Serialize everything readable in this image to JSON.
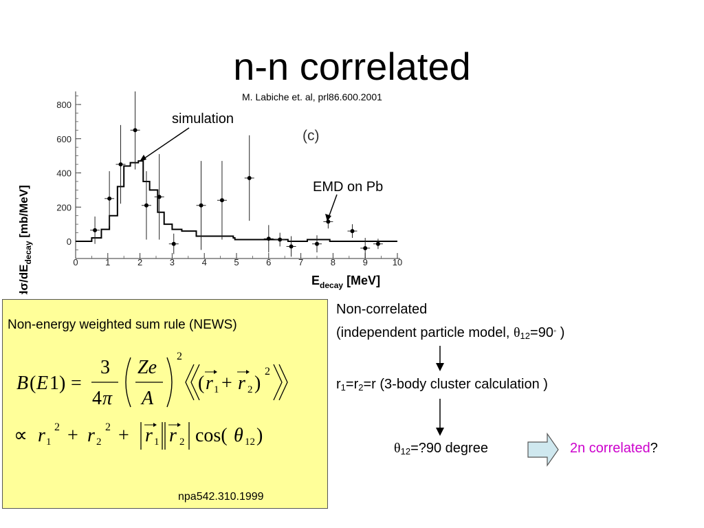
{
  "slide": {
    "title": "n-n correlated",
    "citation": "M. Labiche et. al, prl86.600.2001"
  },
  "plot": {
    "panel_label": "(c)",
    "annotation_simulation": "simulation",
    "annotation_emd": "EMD on Pb",
    "xlabel_main": "E",
    "xlabel_sub": "decay",
    "xlabel_unit": "[MeV]",
    "ylabel_prefix": "dσ/dE",
    "ylabel_sub": "decay",
    "ylabel_unit": "[mb/MeV]"
  },
  "chart_data": {
    "type": "scatter",
    "xlim": [
      0,
      10
    ],
    "ylim": [
      -100,
      900
    ],
    "xticks": [
      "0",
      "1",
      "2",
      "3",
      "4",
      "5",
      "6",
      "7",
      "8",
      "9",
      "10"
    ],
    "yticks": [
      "0",
      "200",
      "400",
      "600",
      "800"
    ],
    "series": [
      {
        "kind": "points_with_errors",
        "x": [
          0.6,
          1.05,
          1.4,
          1.85,
          2.2,
          2.6,
          3.05,
          3.9,
          4.55,
          5.4,
          6.0,
          6.35,
          6.7,
          7.5,
          7.85,
          8.6,
          9.0,
          9.4
        ],
        "y": [
          65,
          250,
          450,
          650,
          210,
          260,
          -15,
          210,
          240,
          370,
          15,
          10,
          -30,
          -15,
          115,
          60,
          -40,
          -15
        ],
        "yerr": [
          80,
          160,
          230,
          230,
          200,
          250,
          60,
          260,
          230,
          250,
          80,
          40,
          60,
          50,
          40,
          40,
          60,
          30
        ]
      },
      {
        "kind": "step",
        "edges": [
          0,
          0.5,
          0.8,
          1.05,
          1.3,
          1.5,
          1.7,
          1.95,
          2.1,
          2.3,
          2.55,
          2.75,
          3.0,
          3.3,
          3.75,
          4.5,
          4.9,
          4.95,
          6.6,
          7.2,
          7.9,
          10
        ],
        "values": [
          0,
          20,
          70,
          150,
          320,
          440,
          460,
          470,
          350,
          300,
          170,
          100,
          70,
          60,
          30,
          30,
          20,
          10,
          0,
          10,
          0
        ]
      }
    ]
  },
  "news": {
    "title": "Non-energy weighted sum rule (NEWS)",
    "reference": "npa542.310.1999"
  },
  "right": {
    "noncorr_line1": "Non-correlated",
    "noncorr_line2_prefix": "(independent particle model, ",
    "theta_symbol": "θ",
    "theta_sub": "12",
    "noncorr_line2_value": "=90",
    "degree_mark": "◦",
    "noncorr_line2_suffix": " )",
    "r_eq_r1": "r",
    "r_eq_sub1": "1",
    "r_eq_mid": "=r",
    "r_eq_sub2": "2",
    "r_eq_rest": "=r (3-body cluster calculation )",
    "theta_eq_value": "=?90 degree",
    "conclusion_colored": "2n correlated",
    "conclusion_suffix": "?",
    "accent_color": "#cc00cc",
    "arrow_fill": "#cfe8ef"
  }
}
